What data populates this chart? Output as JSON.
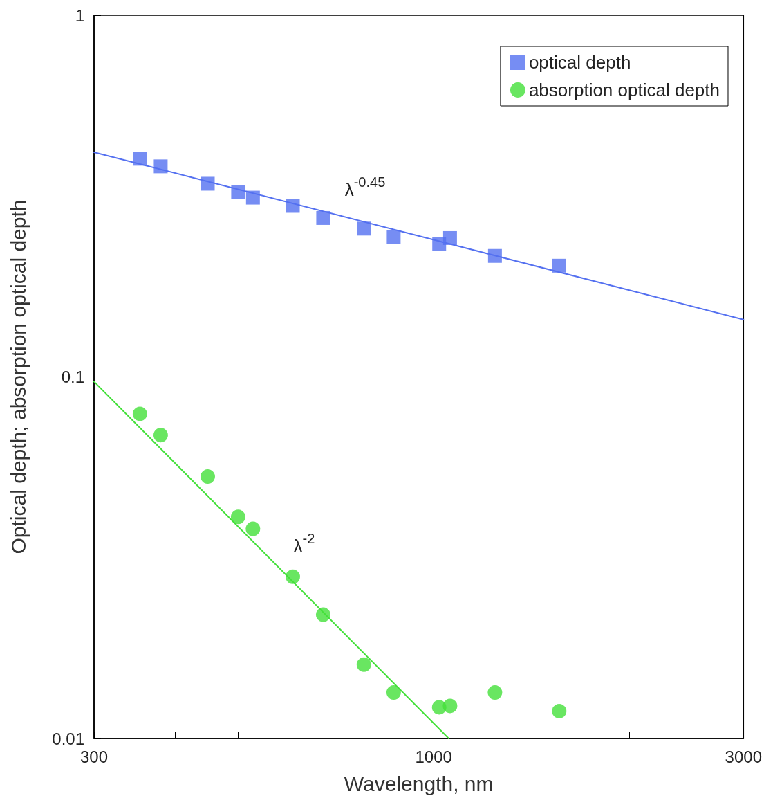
{
  "chart_data": {
    "type": "scatter",
    "xlabel": "Wavelength, nm",
    "ylabel": "Optical depth; absorption optical depth",
    "log": "xy",
    "xlim": [
      300,
      3000
    ],
    "xticks": [
      300,
      {
        "value": 400,
        "label": null
      },
      {
        "value": 500,
        "label": null
      },
      {
        "value": 600,
        "label": null
      },
      {
        "value": 700,
        "label": null
      },
      {
        "value": 800,
        "label": null
      },
      {
        "value": 900,
        "label": null
      },
      1000,
      {
        "value": 2000,
        "label": null
      },
      3000
    ],
    "ylim": [
      0.01,
      1
    ],
    "yticks": [
      0.01,
      0.1,
      1
    ],
    "grid": true,
    "legend": "top right",
    "series": [
      {
        "name": "optical depth",
        "color": "#5470f0",
        "marker": "square",
        "x": [
          353,
          380,
          449,
          500,
          527,
          607,
          676,
          781,
          868,
          1020,
          1060,
          1243,
          1561
        ],
        "values": [
          0.401,
          0.382,
          0.342,
          0.325,
          0.313,
          0.297,
          0.275,
          0.257,
          0.244,
          0.233,
          0.242,
          0.216,
          0.203
        ]
      },
      {
        "name": "absorption optical depth",
        "color": "#44e03a",
        "marker": "circle",
        "x": [
          353,
          380,
          449,
          500,
          527,
          607,
          676,
          781,
          868,
          1020,
          1060,
          1243,
          1561
        ],
        "values": [
          0.079,
          0.069,
          0.053,
          0.041,
          0.038,
          0.028,
          0.022,
          0.016,
          0.0134,
          0.0122,
          0.0123,
          0.0134,
          0.0119
        ]
      },
      {
        "type": "line",
        "color": "#5470f0",
        "x": [
          300,
          3000
        ],
        "values": [
          0.418,
          0.144
        ]
      },
      {
        "type": "line",
        "color": "#44e03a",
        "x": [
          300,
          1055
        ],
        "values": [
          0.097,
          0.01
        ]
      }
    ],
    "annotations": [
      "λ$^{-0.45}$",
      "λ$^{-2}$"
    ]
  }
}
